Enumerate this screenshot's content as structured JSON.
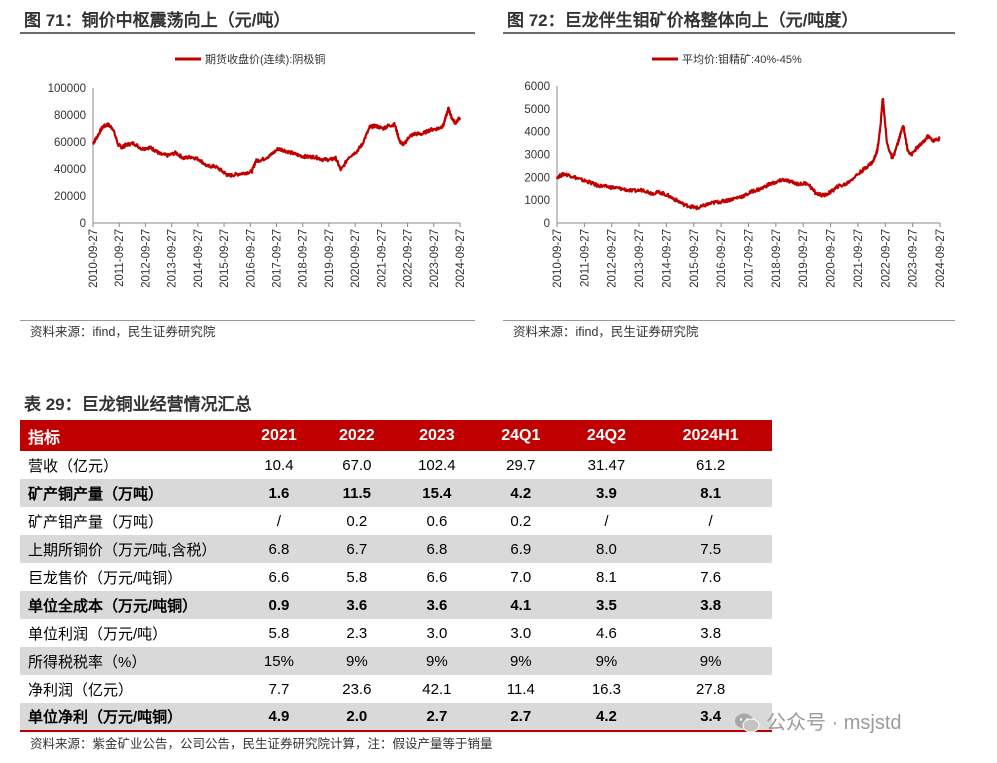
{
  "figures": [
    {
      "title": "图 71：铜价中枢震荡向上（元/吨）",
      "source": "资料来源：ifind，民生证券研究院"
    },
    {
      "title": "图 72：巨龙伴生钼矿价格整体向上（元/吨度）",
      "source": "资料来源：ifind，民生证券研究院"
    }
  ],
  "chart_data": [
    {
      "type": "line",
      "title": "铜价中枢震荡向上（元/吨）",
      "legend": "期货收盘价(连续):阴极铜",
      "legend_position": "top-center",
      "color": "#c00000",
      "ylim": [
        0,
        100000
      ],
      "yticks": [
        "0",
        "20000",
        "40000",
        "60000",
        "80000",
        "100000"
      ],
      "xticks": [
        "2010-09-27",
        "2011-09-27",
        "2012-09-27",
        "2013-09-27",
        "2014-09-27",
        "2015-09-27",
        "2016-09-27",
        "2017-09-27",
        "2018-09-27",
        "2019-09-27",
        "2020-09-27",
        "2021-09-27",
        "2022-09-27",
        "2023-09-27",
        "2024-09-27"
      ],
      "x": [
        2010.74,
        2010.9,
        2011.1,
        2011.3,
        2011.5,
        2011.7,
        2011.85,
        2012.0,
        2012.3,
        2012.6,
        2012.9,
        2013.1,
        2013.3,
        2013.6,
        2013.9,
        2014.2,
        2014.5,
        2014.8,
        2015.1,
        2015.4,
        2015.7,
        2015.9,
        2016.2,
        2016.5,
        2016.8,
        2016.95,
        2017.2,
        2017.5,
        2017.8,
        2018.0,
        2018.3,
        2018.6,
        2018.9,
        2019.2,
        2019.5,
        2019.8,
        2020.0,
        2020.2,
        2020.5,
        2020.8,
        2021.0,
        2021.3,
        2021.5,
        2021.8,
        2022.0,
        2022.25,
        2022.45,
        2022.6,
        2022.8,
        2023.0,
        2023.3,
        2023.6,
        2023.9,
        2024.1,
        2024.3,
        2024.4,
        2024.55,
        2024.74
      ],
      "values": [
        59000,
        64000,
        71000,
        73000,
        70000,
        58000,
        56000,
        58000,
        59000,
        55000,
        56000,
        54000,
        51000,
        50000,
        52000,
        48000,
        49000,
        47000,
        42000,
        42000,
        38000,
        35000,
        36000,
        37000,
        38000,
        46000,
        47000,
        50000,
        55000,
        54000,
        52000,
        50000,
        49000,
        49000,
        47000,
        47000,
        48000,
        39000,
        49000,
        53000,
        58000,
        71000,
        72000,
        70000,
        72000,
        73000,
        60000,
        58000,
        64000,
        66000,
        66000,
        69000,
        70000,
        72000,
        85000,
        79000,
        74000,
        78000
      ]
    },
    {
      "type": "line",
      "title": "巨龙伴生钼矿价格整体向上（元/吨度）",
      "legend": "平均价:钼精矿:40%-45%",
      "legend_position": "top-center",
      "color": "#c00000",
      "ylim": [
        0,
        6000
      ],
      "yticks": [
        "0",
        "1000",
        "2000",
        "3000",
        "4000",
        "5000",
        "6000"
      ],
      "xticks": [
        "2010-09-27",
        "2011-09-27",
        "2012-09-27",
        "2013-09-27",
        "2014-09-27",
        "2015-09-27",
        "2016-09-27",
        "2017-09-27",
        "2018-09-27",
        "2019-09-27",
        "2020-09-27",
        "2021-09-27",
        "2022-09-27",
        "2023-09-27",
        "2024-09-27"
      ],
      "x": [
        2010.74,
        2011.0,
        2011.3,
        2011.6,
        2011.9,
        2012.2,
        2012.5,
        2012.8,
        2013.1,
        2013.5,
        2013.9,
        2014.2,
        2014.5,
        2014.8,
        2015.1,
        2015.4,
        2015.7,
        2015.9,
        2016.2,
        2016.5,
        2016.8,
        2017.0,
        2017.3,
        2017.6,
        2017.9,
        2018.2,
        2018.5,
        2018.8,
        2019.0,
        2019.3,
        2019.6,
        2019.9,
        2020.2,
        2020.5,
        2020.8,
        2021.0,
        2021.3,
        2021.6,
        2021.9,
        2022.1,
        2022.3,
        2022.45,
        2022.55,
        2022.65,
        2022.8,
        2023.0,
        2023.2,
        2023.4,
        2023.55,
        2023.7,
        2023.9,
        2024.1,
        2024.3,
        2024.5,
        2024.74
      ],
      "values": [
        2000,
        2150,
        2050,
        1900,
        1800,
        1650,
        1600,
        1550,
        1500,
        1400,
        1450,
        1300,
        1350,
        1200,
        1000,
        800,
        700,
        650,
        800,
        900,
        950,
        1000,
        1100,
        1200,
        1400,
        1500,
        1700,
        1800,
        1900,
        1800,
        1700,
        1750,
        1300,
        1200,
        1400,
        1600,
        1700,
        2000,
        2300,
        2500,
        2700,
        3200,
        4100,
        5500,
        3500,
        2800,
        3500,
        4300,
        3200,
        3000,
        3300,
        3500,
        3800,
        3600,
        3700
      ]
    }
  ],
  "table": {
    "title": "表 29：巨龙铜业经营情况汇总",
    "headers": [
      "指标",
      "2021",
      "2022",
      "2023",
      "24Q1",
      "24Q2",
      "2024H1"
    ],
    "rows": [
      {
        "cells": [
          "营收（亿元）",
          "10.4",
          "67.0",
          "102.4",
          "29.7",
          "31.47",
          "61.2"
        ],
        "bold": false,
        "shade": false
      },
      {
        "cells": [
          "矿产铜产量（万吨）",
          "1.6",
          "11.5",
          "15.4",
          "4.2",
          "3.9",
          "8.1"
        ],
        "bold": true,
        "shade": true
      },
      {
        "cells": [
          "矿产钼产量（万吨）",
          "/",
          "0.2",
          "0.6",
          "0.2",
          "/",
          "/"
        ],
        "bold": false,
        "shade": false
      },
      {
        "cells": [
          "上期所铜价（万元/吨,含税）",
          "6.8",
          "6.7",
          "6.8",
          "6.9",
          "8.0",
          "7.5"
        ],
        "bold": false,
        "shade": true
      },
      {
        "cells": [
          "巨龙售价（万元/吨铜）",
          "6.6",
          "5.8",
          "6.6",
          "7.0",
          "8.1",
          "7.6"
        ],
        "bold": false,
        "shade": false
      },
      {
        "cells": [
          "单位全成本（万元/吨铜）",
          "0.9",
          "3.6",
          "3.6",
          "4.1",
          "3.5",
          "3.8"
        ],
        "bold": true,
        "shade": true
      },
      {
        "cells": [
          "单位利润（万元/吨）",
          "5.8",
          "2.3",
          "3.0",
          "3.0",
          "4.6",
          "3.8"
        ],
        "bold": false,
        "shade": false
      },
      {
        "cells": [
          "所得税税率（%）",
          "15%",
          "9%",
          "9%",
          "9%",
          "9%",
          "9%"
        ],
        "bold": false,
        "shade": true
      },
      {
        "cells": [
          "净利润（亿元）",
          "7.7",
          "23.6",
          "42.1",
          "11.4",
          "16.3",
          "27.8"
        ],
        "bold": false,
        "shade": false
      },
      {
        "cells": [
          "单位净利（万元/吨铜）",
          "4.9",
          "2.0",
          "2.7",
          "2.7",
          "4.2",
          "3.4"
        ],
        "bold": true,
        "shade": true
      }
    ],
    "source": "资料来源：紫金矿业公告，公司公告，民生证券研究院计算，注：假设产量等于销量"
  },
  "watermark": {
    "icon": "wechat-icon",
    "text": "公众号 · msjstd"
  }
}
